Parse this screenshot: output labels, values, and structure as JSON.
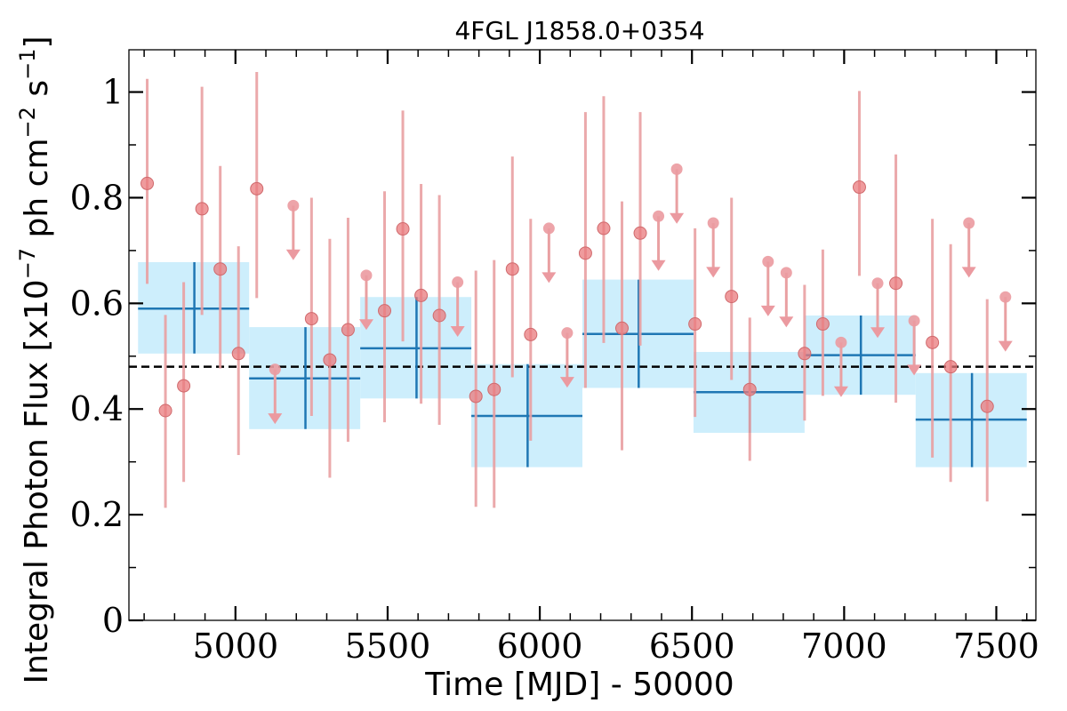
{
  "chart_data": {
    "type": "scatter",
    "title": "4FGL J1858.0+0354",
    "xlabel": "Time [MJD] - 50000",
    "ylabel_parts": [
      "Integral Photon Flux [x10",
      "−7",
      " ph cm",
      "−2",
      " s",
      "−1",
      "]"
    ],
    "xlim": [
      4650,
      7630
    ],
    "ylim": [
      0,
      1.08
    ],
    "x_ticks": [
      5000,
      5500,
      6000,
      6500,
      7000,
      7500
    ],
    "x_tick_labels": [
      "5000",
      "5500",
      "6000",
      "6500",
      "7000",
      "7500"
    ],
    "x_minor_step": 100,
    "y_ticks": [
      0,
      0.2,
      0.4,
      0.6,
      0.8,
      1.0
    ],
    "y_tick_labels": [
      "0",
      "0.2",
      "0.4",
      "0.6",
      "0.8",
      "1"
    ],
    "y_minor_step": 0.1,
    "grid": false,
    "reference_line": {
      "y": 0.48,
      "style": "dashed",
      "color": "#000000"
    },
    "colors": {
      "point": "#e9797c",
      "errorbar": "#e9a0a2",
      "upper_limit": "#eb9aa0",
      "bin_band": "#cdeefc",
      "bin_line": "#1f77b4"
    },
    "bins": [
      {
        "x_start": 4680,
        "x_end": 5045,
        "x_center": 4865,
        "y": 0.59,
        "y_low": 0.505,
        "y_high": 0.678
      },
      {
        "x_start": 5045,
        "x_end": 5410,
        "x_center": 5230,
        "y": 0.458,
        "y_low": 0.362,
        "y_high": 0.555
      },
      {
        "x_start": 5410,
        "x_end": 5775,
        "x_center": 5595,
        "y": 0.515,
        "y_low": 0.42,
        "y_high": 0.612
      },
      {
        "x_start": 5775,
        "x_end": 6140,
        "x_center": 5960,
        "y": 0.387,
        "y_low": 0.29,
        "y_high": 0.485
      },
      {
        "x_start": 6140,
        "x_end": 6505,
        "x_center": 6325,
        "y": 0.542,
        "y_low": 0.44,
        "y_high": 0.645
      },
      {
        "x_start": 6505,
        "x_end": 6870,
        "x_center": 6690,
        "y": 0.432,
        "y_low": 0.355,
        "y_high": 0.508
      },
      {
        "x_start": 6870,
        "x_end": 7235,
        "x_center": 7055,
        "y": 0.502,
        "y_low": 0.427,
        "y_high": 0.577
      },
      {
        "x_start": 7235,
        "x_end": 7600,
        "x_center": 7420,
        "y": 0.38,
        "y_low": 0.29,
        "y_high": 0.468
      }
    ],
    "points": [
      {
        "x": 4710,
        "y": 0.827,
        "y_low": 0.637,
        "y_high": 1.025
      },
      {
        "x": 4770,
        "y": 0.397,
        "y_low": 0.213,
        "y_high": 0.578
      },
      {
        "x": 4830,
        "y": 0.444,
        "y_low": 0.262,
        "y_high": 0.64
      },
      {
        "x": 4890,
        "y": 0.779,
        "y_low": 0.578,
        "y_high": 1.01
      },
      {
        "x": 4950,
        "y": 0.665,
        "y_low": 0.477,
        "y_high": 0.86
      },
      {
        "x": 5010,
        "y": 0.505,
        "y_low": 0.313,
        "y_high": 0.708
      },
      {
        "x": 5070,
        "y": 0.817,
        "y_low": 0.61,
        "y_high": 1.038
      },
      {
        "x": 5250,
        "y": 0.571,
        "y_low": 0.387,
        "y_high": 0.8
      },
      {
        "x": 5310,
        "y": 0.493,
        "y_low": 0.27,
        "y_high": 0.722
      },
      {
        "x": 5370,
        "y": 0.55,
        "y_low": 0.338,
        "y_high": 0.762
      },
      {
        "x": 5490,
        "y": 0.586,
        "y_low": 0.375,
        "y_high": 0.812
      },
      {
        "x": 5550,
        "y": 0.741,
        "y_low": 0.528,
        "y_high": 0.965
      },
      {
        "x": 5610,
        "y": 0.615,
        "y_low": 0.41,
        "y_high": 0.826
      },
      {
        "x": 5670,
        "y": 0.577,
        "y_low": 0.37,
        "y_high": 0.805
      },
      {
        "x": 5790,
        "y": 0.424,
        "y_low": 0.215,
        "y_high": 0.662
      },
      {
        "x": 5850,
        "y": 0.437,
        "y_low": 0.213,
        "y_high": 0.682
      },
      {
        "x": 5910,
        "y": 0.665,
        "y_low": 0.46,
        "y_high": 0.878
      },
      {
        "x": 5970,
        "y": 0.541,
        "y_low": 0.34,
        "y_high": 0.76
      },
      {
        "x": 6150,
        "y": 0.695,
        "y_low": 0.44,
        "y_high": 0.962
      },
      {
        "x": 6210,
        "y": 0.742,
        "y_low": 0.525,
        "y_high": 0.992
      },
      {
        "x": 6270,
        "y": 0.553,
        "y_low": 0.322,
        "y_high": 0.793
      },
      {
        "x": 6330,
        "y": 0.733,
        "y_low": 0.52,
        "y_high": 0.962
      },
      {
        "x": 6510,
        "y": 0.561,
        "y_low": 0.385,
        "y_high": 0.742
      },
      {
        "x": 6630,
        "y": 0.613,
        "y_low": 0.455,
        "y_high": 0.8
      },
      {
        "x": 6690,
        "y": 0.437,
        "y_low": 0.302,
        "y_high": 0.573
      },
      {
        "x": 6870,
        "y": 0.505,
        "y_low": 0.378,
        "y_high": 0.635
      },
      {
        "x": 6930,
        "y": 0.561,
        "y_low": 0.425,
        "y_high": 0.702
      },
      {
        "x": 7050,
        "y": 0.82,
        "y_low": 0.652,
        "y_high": 1.002
      },
      {
        "x": 7170,
        "y": 0.638,
        "y_low": 0.412,
        "y_high": 0.882
      },
      {
        "x": 7290,
        "y": 0.526,
        "y_low": 0.308,
        "y_high": 0.76
      },
      {
        "x": 7350,
        "y": 0.48,
        "y_low": 0.262,
        "y_high": 0.712
      },
      {
        "x": 7470,
        "y": 0.405,
        "y_low": 0.225,
        "y_high": 0.608
      }
    ],
    "upper_limits": [
      {
        "x": 5130,
        "y": 0.475
      },
      {
        "x": 5190,
        "y": 0.785
      },
      {
        "x": 5430,
        "y": 0.653
      },
      {
        "x": 5730,
        "y": 0.64
      },
      {
        "x": 6030,
        "y": 0.742
      },
      {
        "x": 6090,
        "y": 0.544
      },
      {
        "x": 6390,
        "y": 0.765
      },
      {
        "x": 6450,
        "y": 0.854
      },
      {
        "x": 6570,
        "y": 0.752
      },
      {
        "x": 6750,
        "y": 0.679
      },
      {
        "x": 6810,
        "y": 0.658
      },
      {
        "x": 6990,
        "y": 0.526
      },
      {
        "x": 7110,
        "y": 0.638
      },
      {
        "x": 7230,
        "y": 0.567
      },
      {
        "x": 7410,
        "y": 0.752
      },
      {
        "x": 7530,
        "y": 0.612
      }
    ]
  }
}
